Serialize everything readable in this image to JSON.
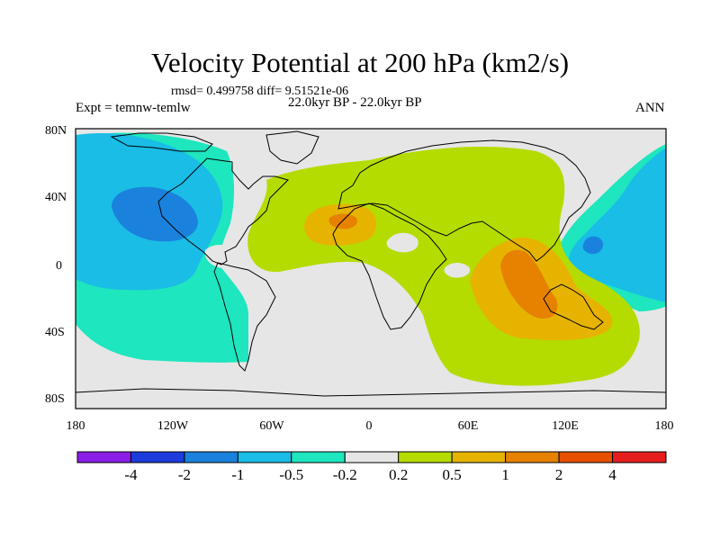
{
  "title": "Velocity Potential at 200 hPa (km2/s)",
  "stats_line": "rmsd= 0.499758 diff= 9.51521e-06",
  "period": "22.0kyr BP - 22.0kyr BP",
  "experiment": "Expt = temnw-temlw",
  "season": "ANN",
  "map": {
    "lat_labels": [
      "80N",
      "40N",
      "0",
      "40S",
      "80S"
    ],
    "lon_labels": [
      "180",
      "120W",
      "60W",
      "0",
      "60E",
      "120E",
      "180"
    ],
    "background_color": "#e6e6e6",
    "coastline_color": "#000000"
  },
  "colorbar": {
    "colors": [
      "#8a1ee6",
      "#1e3cdc",
      "#1a82dc",
      "#19bde6",
      "#1ee6be",
      "#e6e6e6",
      "#b4dc00",
      "#e6b400",
      "#e68200",
      "#e65000",
      "#e61e1e"
    ],
    "labels": [
      "-4",
      "-2",
      "-1",
      "-0.5",
      "-0.2",
      "0.2",
      "0.5",
      "1",
      "2",
      "4"
    ]
  }
}
